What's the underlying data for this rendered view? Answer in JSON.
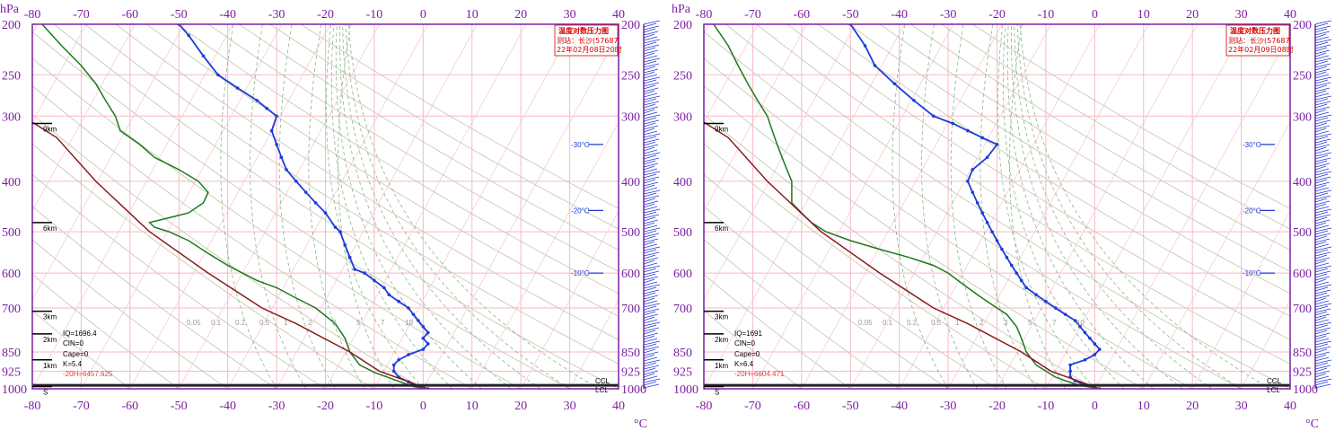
{
  "panels": [
    {
      "title": "温度对数压力图",
      "station": "测站：长沙(57687",
      "time": "22年02月08日20时",
      "info": {
        "iq": "IQ=1696.4",
        "cin": "CIN=0",
        "cape": "Cape=0",
        "k": "K=5.4",
        "h20": "-20H=6457.625"
      },
      "iso_markers": [
        "-30°C",
        "-20°C",
        "-10°C"
      ]
    },
    {
      "title": "温度对数压力图",
      "station": "测站：长沙(57687",
      "time": "22年02月09日08时",
      "info": {
        "iq": "IQ=1691",
        "cin": "CIN=0",
        "cape": "Cape=0",
        "k": "K=6.4",
        "h20": "-20H=6604.471"
      },
      "iso_markers": [
        "-30°C",
        "-20°C",
        "-10°C"
      ]
    }
  ],
  "axis": {
    "pressure_unit": "hPa",
    "temp_unit": "°C",
    "pressure_ticks": [
      "200",
      "250",
      "300",
      "400",
      "500",
      "600",
      "700",
      "850",
      "925",
      "1000"
    ],
    "temp_ticks": [
      "-80",
      "-70",
      "-60",
      "-50",
      "-40",
      "-30",
      "-20",
      "-10",
      "0",
      "10",
      "20",
      "30",
      "40"
    ],
    "height_labels": [
      "9km",
      "6km",
      "3km",
      "2km",
      "1km",
      "S"
    ],
    "bottom_labels": [
      "CCL",
      "LCL"
    ],
    "line_ticks": [
      "0.05",
      "0.1",
      "0.2",
      "0.5",
      "1",
      "2",
      "3",
      "5",
      "7",
      "10"
    ]
  },
  "colors": {
    "frame": "#7b1fa2",
    "temp": "#1e3cd8",
    "dewpoint": "#1b7a1b",
    "parcel": "#8b1a1a",
    "grid": "#f6b9c6",
    "isotherm": "#f6b9c6",
    "dry_adiabat": "#c9c9b5",
    "moist_adiabat": "#88b888"
  },
  "chart_data": [
    {
      "type": "line",
      "title": "温度对数压力图",
      "xlabel": "°C",
      "ylabel": "hPa",
      "xlim": [
        -80,
        40
      ],
      "ylim": [
        1000,
        200
      ],
      "series": [
        {
          "name": "temperature",
          "points": [
            [
              1,
              1000
            ],
            [
              -1,
              990
            ],
            [
              -3,
              970
            ],
            [
              -5,
              950
            ],
            [
              -6,
              925
            ],
            [
              -6,
              900
            ],
            [
              -5,
              880
            ],
            [
              -3,
              860
            ],
            [
              0,
              840
            ],
            [
              1,
              820
            ],
            [
              0,
              800
            ],
            [
              1,
              780
            ],
            [
              0,
              760
            ],
            [
              -1,
              740
            ],
            [
              -2,
              720
            ],
            [
              -3,
              700
            ],
            [
              -5,
              680
            ],
            [
              -7,
              660
            ],
            [
              -8,
              640
            ],
            [
              -10,
              620
            ],
            [
              -12,
              600
            ],
            [
              -14,
              590
            ],
            [
              -15,
              560
            ],
            [
              -16,
              530
            ],
            [
              -17,
              500
            ],
            [
              -18,
              490
            ],
            [
              -20,
              460
            ],
            [
              -22,
              440
            ],
            [
              -24,
              420
            ],
            [
              -26,
              400
            ],
            [
              -28,
              380
            ],
            [
              -29,
              360
            ],
            [
              -30,
              340
            ],
            [
              -31,
              320
            ],
            [
              -30,
              300
            ],
            [
              -32,
              290
            ],
            [
              -34,
              280
            ],
            [
              -38,
              265
            ],
            [
              -42,
              250
            ],
            [
              -45,
              230
            ],
            [
              -48,
              210
            ],
            [
              -50,
              200
            ]
          ]
        },
        {
          "name": "dewpoint",
          "points": [
            [
              1,
              1000
            ],
            [
              -2,
              990
            ],
            [
              -6,
              960
            ],
            [
              -10,
              930
            ],
            [
              -13,
              900
            ],
            [
              -15,
              850
            ],
            [
              -16,
              800
            ],
            [
              -18,
              750
            ],
            [
              -22,
              700
            ],
            [
              -26,
              670
            ],
            [
              -30,
              640
            ],
            [
              -34,
              620
            ],
            [
              -37,
              600
            ],
            [
              -40,
              580
            ],
            [
              -44,
              550
            ],
            [
              -48,
              520
            ],
            [
              -52,
              500
            ],
            [
              -55,
              490
            ],
            [
              -56,
              480
            ],
            [
              -52,
              470
            ],
            [
              -48,
              460
            ],
            [
              -45,
              440
            ],
            [
              -44,
              420
            ],
            [
              -46,
              400
            ],
            [
              -50,
              380
            ],
            [
              -55,
              360
            ],
            [
              -58,
              340
            ],
            [
              -62,
              320
            ],
            [
              -63,
              300
            ],
            [
              -65,
              280
            ],
            [
              -67,
              260
            ],
            [
              -70,
              240
            ],
            [
              -74,
              220
            ],
            [
              -78,
              200
            ]
          ]
        },
        {
          "name": "parcel",
          "points": [
            [
              1,
              1000
            ],
            [
              -9,
              925
            ],
            [
              -15,
              850
            ],
            [
              -26,
              750
            ],
            [
              -33,
              700
            ],
            [
              -44,
              600
            ],
            [
              -56,
              500
            ],
            [
              -67,
              400
            ],
            [
              -75,
              330
            ],
            [
              -82,
              300
            ]
          ]
        }
      ]
    },
    {
      "type": "line",
      "title": "温度对数压力图",
      "xlabel": "°C",
      "ylabel": "hPa",
      "xlim": [
        -80,
        40
      ],
      "ylim": [
        1000,
        200
      ],
      "series": [
        {
          "name": "temperature",
          "points": [
            [
              1,
              1000
            ],
            [
              -2,
              985
            ],
            [
              -4,
              965
            ],
            [
              -5,
              950
            ],
            [
              -5,
              925
            ],
            [
              -5,
              900
            ],
            [
              -2,
              880
            ],
            [
              0,
              860
            ],
            [
              1,
              840
            ],
            [
              0,
              820
            ],
            [
              -1,
              800
            ],
            [
              -2,
              780
            ],
            [
              -3,
              760
            ],
            [
              -4,
              740
            ],
            [
              -6,
              720
            ],
            [
              -8,
              700
            ],
            [
              -10,
              680
            ],
            [
              -12,
              660
            ],
            [
              -14,
              640
            ],
            [
              -15,
              620
            ],
            [
              -16,
              600
            ],
            [
              -17,
              580
            ],
            [
              -18,
              560
            ],
            [
              -19,
              540
            ],
            [
              -20,
              520
            ],
            [
              -21,
              500
            ],
            [
              -22,
              480
            ],
            [
              -23,
              460
            ],
            [
              -24,
              440
            ],
            [
              -25,
              420
            ],
            [
              -26,
              400
            ],
            [
              -25,
              380
            ],
            [
              -22,
              360
            ],
            [
              -20,
              340
            ],
            [
              -23,
              330
            ],
            [
              -26,
              320
            ],
            [
              -29,
              310
            ],
            [
              -33,
              300
            ],
            [
              -37,
              280
            ],
            [
              -41,
              260
            ],
            [
              -45,
              240
            ],
            [
              -47,
              220
            ],
            [
              -50,
              200
            ]
          ]
        },
        {
          "name": "dewpoint",
          "points": [
            [
              1,
              1000
            ],
            [
              -3,
              985
            ],
            [
              -6,
              965
            ],
            [
              -8,
              950
            ],
            [
              -10,
              925
            ],
            [
              -12,
              900
            ],
            [
              -14,
              850
            ],
            [
              -15,
              800
            ],
            [
              -16,
              760
            ],
            [
              -18,
              720
            ],
            [
              -20,
              700
            ],
            [
              -22,
              680
            ],
            [
              -24,
              660
            ],
            [
              -26,
              640
            ],
            [
              -28,
              620
            ],
            [
              -30,
              600
            ],
            [
              -33,
              580
            ],
            [
              -38,
              560
            ],
            [
              -44,
              540
            ],
            [
              -50,
              520
            ],
            [
              -55,
              500
            ],
            [
              -58,
              480
            ],
            [
              -60,
              460
            ],
            [
              -62,
              440
            ],
            [
              -62,
              420
            ],
            [
              -62,
              400
            ],
            [
              -63,
              380
            ],
            [
              -64,
              360
            ],
            [
              -65,
              340
            ],
            [
              -66,
              320
            ],
            [
              -67,
              300
            ],
            [
              -69,
              280
            ],
            [
              -71,
              260
            ],
            [
              -73,
              240
            ],
            [
              -75,
              220
            ],
            [
              -78,
              200
            ]
          ]
        },
        {
          "name": "parcel",
          "points": [
            [
              1,
              1000
            ],
            [
              -9,
              925
            ],
            [
              -15,
              850
            ],
            [
              -26,
              750
            ],
            [
              -33,
              700
            ],
            [
              -44,
              600
            ],
            [
              -56,
              500
            ],
            [
              -67,
              400
            ],
            [
              -75,
              330
            ],
            [
              -82,
              300
            ]
          ]
        }
      ]
    }
  ]
}
